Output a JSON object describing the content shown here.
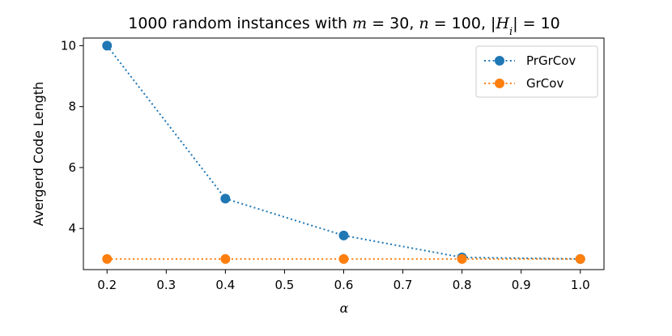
{
  "chart_data": {
    "type": "line",
    "title_parts": [
      {
        "text": "1000 random instances with ",
        "math": false
      },
      {
        "text": "m",
        "math": true
      },
      {
        "text": " = 30, ",
        "math": false
      },
      {
        "text": "n",
        "math": true
      },
      {
        "text": " = 100, |",
        "math": false
      },
      {
        "text": "H",
        "math": true
      },
      {
        "text": "i",
        "math": true,
        "sub": true
      },
      {
        "text": "| = 10",
        "math": false
      }
    ],
    "xlabel": "α",
    "ylabel": "Avergerd Code Length",
    "x": [
      0.2,
      0.4,
      0.6,
      0.8,
      1.0
    ],
    "xlim": [
      0.16,
      1.04
    ],
    "ylim": [
      2.65,
      10.25
    ],
    "xticks": [
      0.2,
      0.3,
      0.4,
      0.5,
      0.6,
      0.7,
      0.8,
      0.9,
      1.0
    ],
    "xtick_labels": [
      "0.2",
      "0.3",
      "0.4",
      "0.5",
      "0.6",
      "0.7",
      "0.8",
      "0.9",
      "1.0"
    ],
    "yticks": [
      4,
      6,
      8,
      10
    ],
    "ytick_labels": [
      "4",
      "6",
      "8",
      "10"
    ],
    "grid": false,
    "legend_position": "top-right",
    "series": [
      {
        "name": "PrGrCov",
        "color": "#1f77b4",
        "values": [
          10.0,
          4.98,
          3.77,
          3.05,
          3.0
        ]
      },
      {
        "name": "GrCov",
        "color": "#ff7f0e",
        "values": [
          3.0,
          3.0,
          3.0,
          3.0,
          3.0
        ]
      }
    ]
  }
}
